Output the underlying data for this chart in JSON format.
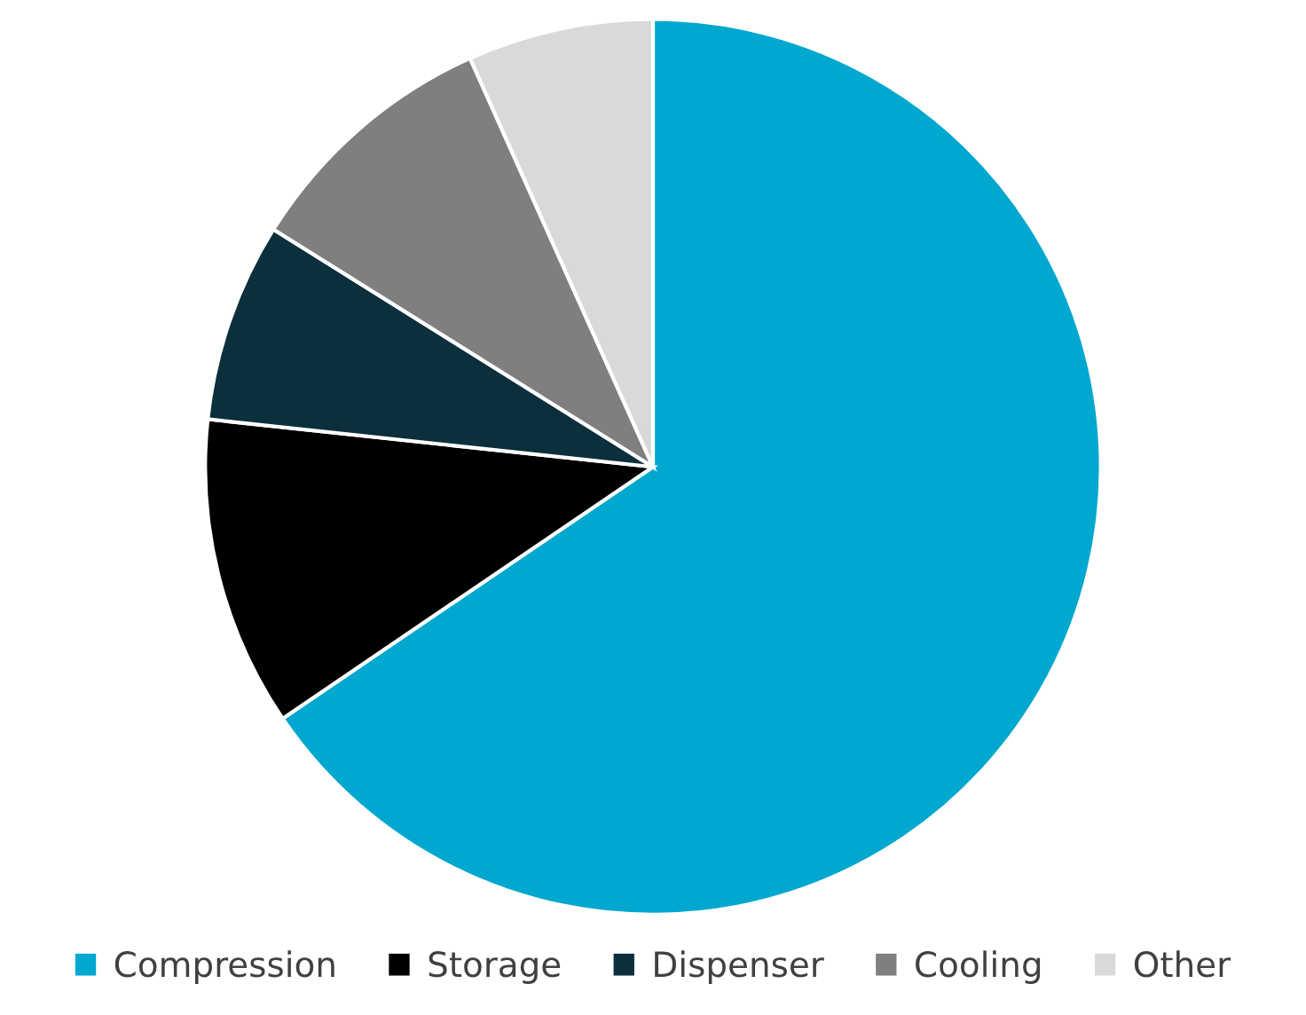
{
  "chart_data": {
    "type": "pie",
    "categories": [
      "Compression",
      "Storage",
      "Dispenser",
      "Cooling",
      "Other"
    ],
    "values": [
      65.5,
      11.2,
      7.2,
      9.4,
      6.7
    ],
    "colors": [
      "#00a7cf",
      "#000000",
      "#0b2f3b",
      "#7f7f7f",
      "#d9d9d9"
    ],
    "legend": "bottom"
  }
}
